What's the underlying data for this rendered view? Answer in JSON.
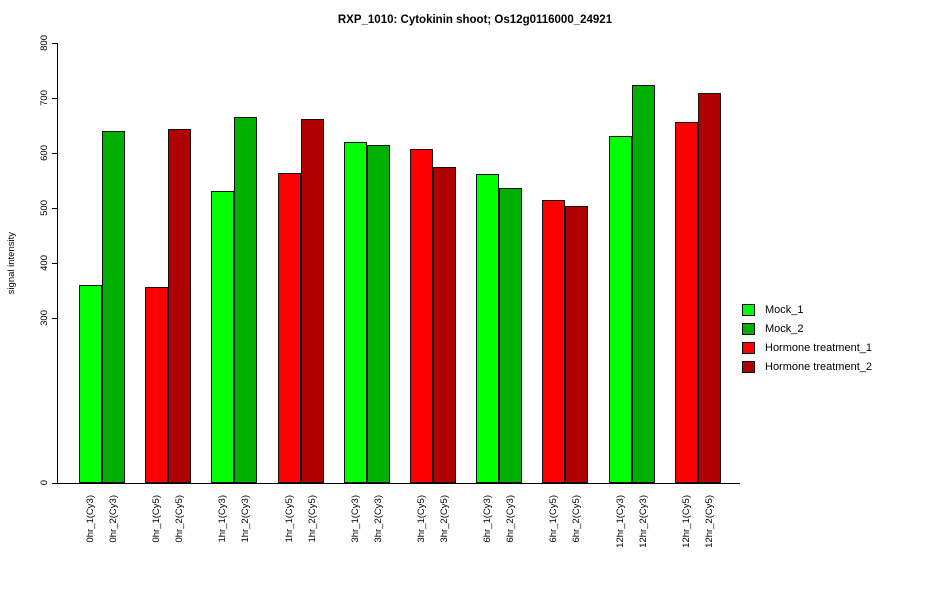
{
  "chart_data": {
    "type": "bar",
    "title": "RXP_1010: Cytokinin shoot; Os12g0116000_24921",
    "xlabel": "",
    "ylabel": "signal intensity",
    "ylim": [
      0,
      800
    ],
    "yticks": [
      0,
      300,
      400,
      500,
      600,
      700,
      800
    ],
    "grid": false,
    "legend_position": "right",
    "legend": [
      {
        "name": "Mock_1",
        "color": "#00FF00"
      },
      {
        "name": "Mock_2",
        "color": "#00B000"
      },
      {
        "name": "Hormone treatment_1",
        "color": "#FF0000"
      },
      {
        "name": "Hormone treatment_2",
        "color": "#B00000"
      }
    ],
    "bars": [
      {
        "label": "0hr_1(Cy3)",
        "value": 360,
        "series": "Mock_1"
      },
      {
        "label": "0hr_2(Cy3)",
        "value": 640,
        "series": "Mock_2"
      },
      {
        "label": "0hr_1(Cy5)",
        "value": 357,
        "series": "Hormone treatment_1"
      },
      {
        "label": "0hr_2(Cy5)",
        "value": 643,
        "series": "Hormone treatment_2"
      },
      {
        "label": "1hr_1(Cy3)",
        "value": 531,
        "series": "Mock_1"
      },
      {
        "label": "1hr_2(Cy3)",
        "value": 665,
        "series": "Mock_2"
      },
      {
        "label": "1hr_1(Cy5)",
        "value": 564,
        "series": "Hormone treatment_1"
      },
      {
        "label": "1hr_2(Cy5)",
        "value": 662,
        "series": "Hormone treatment_2"
      },
      {
        "label": "3hr_1(Cy3)",
        "value": 620,
        "series": "Mock_1"
      },
      {
        "label": "3hr_2(Cy3)",
        "value": 614,
        "series": "Mock_2"
      },
      {
        "label": "3hr_1(Cy5)",
        "value": 607,
        "series": "Hormone treatment_1"
      },
      {
        "label": "3hr_2(Cy5)",
        "value": 574,
        "series": "Hormone treatment_2"
      },
      {
        "label": "6hr_1(Cy3)",
        "value": 562,
        "series": "Mock_1"
      },
      {
        "label": "6hr_2(Cy3)",
        "value": 536,
        "series": "Mock_2"
      },
      {
        "label": "6hr_1(Cy5)",
        "value": 515,
        "series": "Hormone treatment_1"
      },
      {
        "label": "6hr_2(Cy5)",
        "value": 504,
        "series": "Hormone treatment_2"
      },
      {
        "label": "12hr_1(Cy3)",
        "value": 631,
        "series": "Mock_1"
      },
      {
        "label": "12hr_2(Cy3)",
        "value": 723,
        "series": "Mock_2"
      },
      {
        "label": "12hr_1(Cy5)",
        "value": 656,
        "series": "Hormone treatment_1"
      },
      {
        "label": "12hr_2(Cy5)",
        "value": 709,
        "series": "Hormone treatment_2"
      }
    ]
  }
}
